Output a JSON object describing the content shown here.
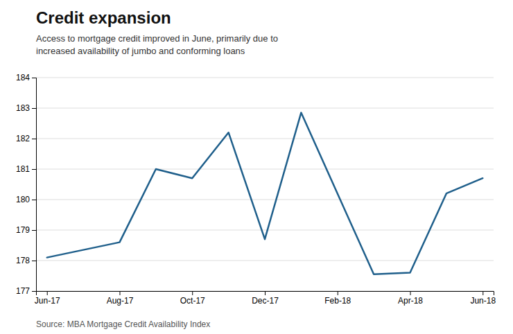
{
  "chart_data": {
    "type": "line",
    "title": "Credit expansion",
    "subtitle": "Access to mortgage credit improved in June, primarily due to\nincreased availability of jumbo and conforming loans",
    "source": "Source: MBA Mortgage Credit Availability Index",
    "x": [
      0,
      2,
      3,
      4,
      5,
      6,
      7,
      9,
      10,
      11,
      12
    ],
    "values": [
      178.1,
      178.6,
      181.0,
      180.7,
      182.2,
      178.7,
      182.85,
      177.55,
      177.6,
      180.2,
      180.7
    ],
    "color": "#1f5f8b",
    "xlim": [
      -0.3,
      12.3
    ],
    "xticks": [
      {
        "value": 0,
        "label": "Jun-17"
      },
      {
        "value": 2,
        "label": "Aug-17"
      },
      {
        "value": 4,
        "label": "Oct-17"
      },
      {
        "value": 6,
        "label": "Dec-17"
      },
      {
        "value": 8,
        "label": "Feb-18"
      },
      {
        "value": 10,
        "label": "Apr-18"
      },
      {
        "value": 12,
        "label": "Jun-18"
      }
    ],
    "ylim": [
      177,
      184
    ],
    "yticks": [
      177,
      178,
      179,
      180,
      181,
      182,
      183,
      184
    ],
    "grid": true
  }
}
